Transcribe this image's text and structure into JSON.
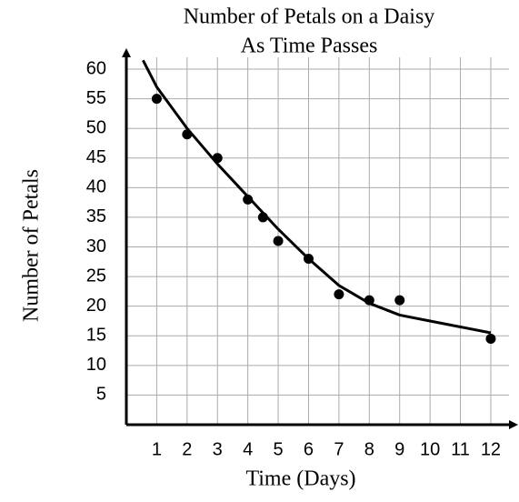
{
  "chart_data": {
    "type": "scatter",
    "title": [
      "Number of Petals on a Daisy",
      "As Time Passes"
    ],
    "x_label": "Time (Days)",
    "y_label": "Number of Petals",
    "x": [
      1,
      2,
      3,
      4,
      4.5,
      5,
      6,
      7,
      8,
      9,
      12
    ],
    "y": [
      55,
      49,
      45,
      38,
      35,
      31,
      28,
      22,
      21,
      21,
      14.5
    ],
    "trend": {
      "x": [
        0.55,
        1,
        2,
        3,
        4,
        5,
        6,
        7,
        8,
        9,
        10,
        11,
        12
      ],
      "y": [
        61.5,
        57,
        50,
        44,
        38.5,
        33,
        28,
        23.5,
        20.5,
        18.5,
        17.5,
        16.5,
        15.5
      ]
    },
    "xlim": [
      0,
      12.6
    ],
    "ylim": [
      0,
      62
    ],
    "xticks": [
      1,
      2,
      3,
      4,
      5,
      6,
      7,
      8,
      9,
      10,
      11,
      12
    ],
    "yticks": [
      5,
      10,
      15,
      20,
      25,
      30,
      35,
      40,
      45,
      50,
      55,
      60
    ],
    "grid": true,
    "color": "#000000"
  }
}
